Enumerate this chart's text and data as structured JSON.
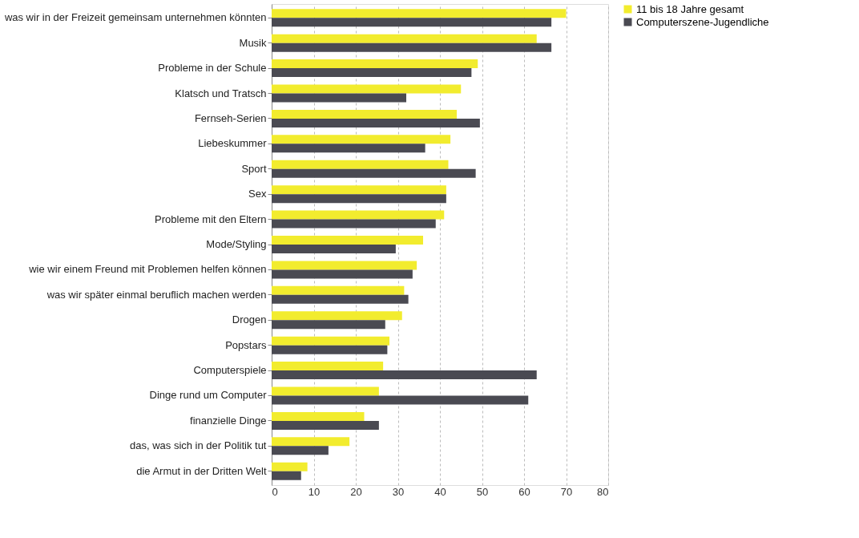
{
  "chart_data": {
    "type": "bar",
    "orientation": "horizontal",
    "categories": [
      "was wir in der Freizeit gemeinsam unternehmen könnten",
      "Musik",
      "Probleme in der Schule",
      "Klatsch und Tratsch",
      "Fernseh-Serien",
      "Liebeskummer",
      "Sport",
      "Sex",
      "Probleme mit den Eltern",
      "Mode/Styling",
      "wie wir einem Freund mit Problemen helfen können",
      "was wir später einmal beruflich machen werden",
      "Drogen",
      "Popstars",
      "Computerspiele",
      "Dinge rund um Computer",
      "finanzielle Dinge",
      "das, was sich in der Politik tut",
      "die Armut in der Dritten Welt"
    ],
    "series": [
      {
        "name": "11 bis 18 Jahre gesamt",
        "color": "#f2ec2e",
        "values": [
          70,
          63,
          49,
          45,
          44,
          42.5,
          42,
          41.5,
          41,
          36,
          34.5,
          31.5,
          31,
          28,
          26.5,
          25.5,
          22,
          18.5,
          8.5
        ]
      },
      {
        "name": "Computerszene-Jugendliche",
        "color": "#4a4a52",
        "values": [
          66.5,
          66.5,
          47.5,
          32,
          49.5,
          36.5,
          48.5,
          41.5,
          39,
          29.5,
          33.5,
          32.5,
          27,
          27.5,
          63,
          61,
          25.5,
          13.5,
          7
        ]
      }
    ],
    "xlim": [
      0,
      80
    ],
    "xticks": [
      0,
      10,
      20,
      30,
      40,
      50,
      60,
      70,
      80
    ],
    "grid": "x",
    "legend": "right"
  }
}
